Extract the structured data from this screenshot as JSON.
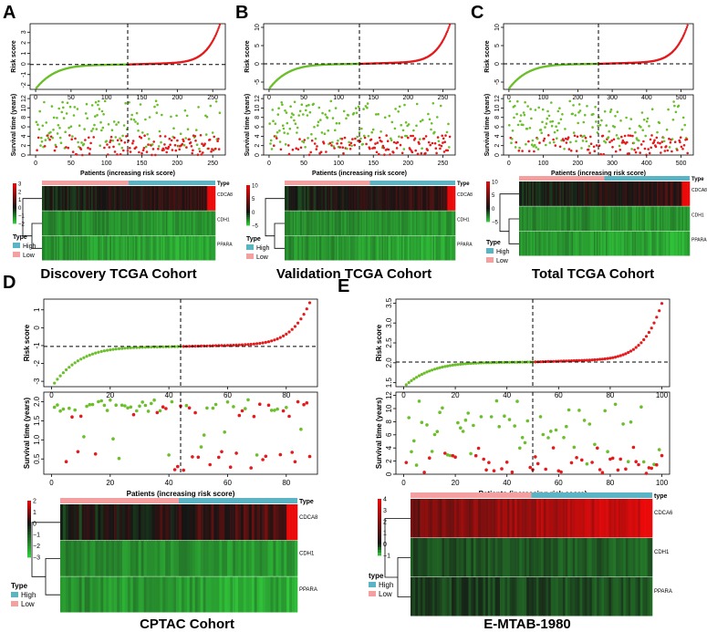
{
  "panels": [
    {
      "label": "A",
      "title": "Discovery TCGA Cohort",
      "n": 260,
      "cut": 130,
      "xticks": [
        0,
        50,
        100,
        150,
        200,
        250
      ],
      "risk_ylim": [
        -2.4,
        3.8
      ],
      "risk_yticks": [
        "-2",
        "-1",
        "0",
        "1",
        "2",
        "3"
      ],
      "risk_ytick_vals": [
        -2,
        -1,
        0,
        1,
        2,
        3
      ],
      "risk_cut": -0.05,
      "surv_ylim": [
        0,
        12.8
      ],
      "surv_yticks": [
        "0",
        "2",
        "4",
        "6",
        "8",
        "10",
        "12"
      ],
      "surv_ytick_vals": [
        0,
        2,
        4,
        6,
        8,
        10,
        12
      ],
      "hm_legend": [
        "3",
        "2",
        "1",
        "0",
        "−1",
        "−2"
      ],
      "hm_legend_vals": [
        3,
        2,
        1,
        0,
        -1,
        -2
      ]
    },
    {
      "label": "B",
      "title": "Validation TCGA Cohort",
      "n": 260,
      "cut": 130,
      "xticks": [
        0,
        50,
        100,
        150,
        200,
        250
      ],
      "risk_ylim": [
        -7,
        11
      ],
      "risk_yticks": [
        "-5",
        "0",
        "5",
        "10"
      ],
      "risk_ytick_vals": [
        -5,
        0,
        5,
        10
      ],
      "risk_cut": 0,
      "surv_ylim": [
        0,
        12.8
      ],
      "surv_yticks": [
        "0",
        "2",
        "4",
        "6",
        "8",
        "10",
        "12"
      ],
      "surv_ytick_vals": [
        0,
        2,
        4,
        6,
        8,
        10,
        12
      ],
      "hm_legend": [
        "10",
        "5",
        "0",
        "−5"
      ],
      "hm_legend_vals": [
        10,
        5,
        0,
        -5
      ]
    },
    {
      "label": "C",
      "title": "Total TCGA Cohort",
      "n": 520,
      "cut": 260,
      "xticks": [
        0,
        100,
        200,
        300,
        400,
        500
      ],
      "risk_ylim": [
        -7,
        11
      ],
      "risk_yticks": [
        "-5",
        "0",
        "5",
        "10"
      ],
      "risk_ytick_vals": [
        -5,
        0,
        5,
        10
      ],
      "risk_cut": 0,
      "surv_ylim": [
        0,
        12.8
      ],
      "surv_yticks": [
        "0",
        "2",
        "4",
        "6",
        "8",
        "10",
        "12"
      ],
      "surv_ytick_vals": [
        0,
        2,
        4,
        6,
        8,
        10,
        12
      ],
      "hm_legend": [
        "10",
        "5",
        "0",
        "−5"
      ],
      "hm_legend_vals": [
        10,
        5,
        0,
        -5
      ]
    },
    {
      "label": "D",
      "title": "CPTAC Cohort",
      "n": 88,
      "cut": 44,
      "xticks": [
        0,
        20,
        40,
        60,
        80
      ],
      "risk_ylim": [
        -3.3,
        1.6
      ],
      "risk_yticks": [
        "-3",
        "-2",
        "-1",
        "0",
        "1"
      ],
      "risk_ytick_vals": [
        -3,
        -2,
        -1,
        0,
        1
      ],
      "risk_cut": -1.05,
      "surv_ylim": [
        0.1,
        2.25
      ],
      "surv_yticks": [
        "0.5",
        "1.0",
        "1.5",
        "2.0"
      ],
      "surv_ytick_vals": [
        0.5,
        1.0,
        1.5,
        2.0
      ],
      "hm_legend": [
        "2",
        "1",
        "0",
        "−1",
        "−2",
        "−3"
      ],
      "hm_legend_vals": [
        2,
        1,
        0,
        -1,
        -2,
        -3
      ]
    },
    {
      "label": "E",
      "title": "E-MTAB-1980",
      "n": 100,
      "cut": 50,
      "xticks": [
        0,
        20,
        40,
        60,
        80,
        100
      ],
      "risk_ylim": [
        1.4,
        3.6
      ],
      "risk_yticks": [
        "1.5",
        "2.0",
        "2.5",
        "3.0",
        "3.5"
      ],
      "risk_ytick_vals": [
        1.5,
        2.0,
        2.5,
        3.0,
        3.5
      ],
      "risk_cut": 2.02,
      "surv_ylim": [
        0,
        12.5
      ],
      "surv_yticks": [
        "0",
        "2",
        "4",
        "6",
        "8",
        "10",
        "12"
      ],
      "surv_ytick_vals": [
        0,
        2,
        4,
        6,
        8,
        10,
        12
      ],
      "hm_legend": [
        "4",
        "3",
        "2",
        "1",
        "0",
        "−1"
      ],
      "hm_legend_vals": [
        4,
        3,
        2,
        1,
        0,
        -1
      ]
    }
  ],
  "risk_ylabel": "Risk score",
  "surv_ylabel": "Survival time (years)",
  "xlabel": "Patients (increasing risk score)",
  "genes": [
    "CDCA8",
    "CDH1",
    "PPARA"
  ],
  "gene_labels_E": [
    "CDCA6",
    "CDH1",
    "PPARA"
  ],
  "type_label": "Type",
  "type_label_E": "type",
  "legend_high": "High",
  "legend_low": "Low",
  "colors": {
    "high": "#e41a1c",
    "low": "#6abf2a",
    "high_bar": "#5ab4c4",
    "low_bar": "#f4a0a0"
  },
  "chart_data": [
    {
      "type": "scatter",
      "name": "risk score curve",
      "panels": [
        "A",
        "B",
        "C",
        "D",
        "E"
      ],
      "xlabel": "Patients (increasing risk score)",
      "ylabel": "Risk score"
    },
    {
      "type": "scatter",
      "name": "survival status",
      "panels": [
        "A",
        "B",
        "C",
        "D",
        "E"
      ],
      "xlabel": "Patients (increasing risk score)",
      "ylabel": "Survival time (years)"
    },
    {
      "type": "heatmap",
      "name": "gene expression",
      "rows": [
        "CDCA8",
        "CDH1",
        "PPARA"
      ],
      "column_groups": [
        "Low",
        "High"
      ]
    }
  ]
}
